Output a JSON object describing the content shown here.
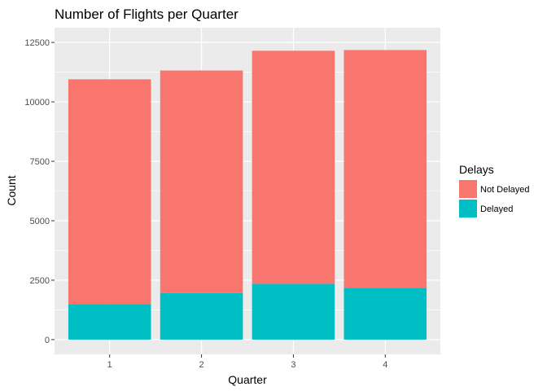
{
  "chart_data": {
    "type": "bar",
    "stacked": true,
    "title": "Number of Flights per Quarter",
    "xlabel": "Quarter",
    "ylabel": "Count",
    "categories": [
      "1",
      "2",
      "3",
      "4"
    ],
    "ylim": [
      0,
      12500
    ],
    "yticks": [
      0,
      2500,
      5000,
      7500,
      10000,
      12500
    ],
    "yticklabels": [
      "0",
      "2500",
      "5000",
      "7500",
      "10000",
      "12500"
    ],
    "grid": true,
    "legend": {
      "title": "Delays",
      "position": "right"
    },
    "series": [
      {
        "name": "Delayed",
        "color": "#00BFC4",
        "values": [
          1490,
          1960,
          2350,
          2170
        ]
      },
      {
        "name": "Not Delayed",
        "color": "#F8766D",
        "values": [
          9460,
          9360,
          9800,
          10010
        ]
      }
    ]
  }
}
